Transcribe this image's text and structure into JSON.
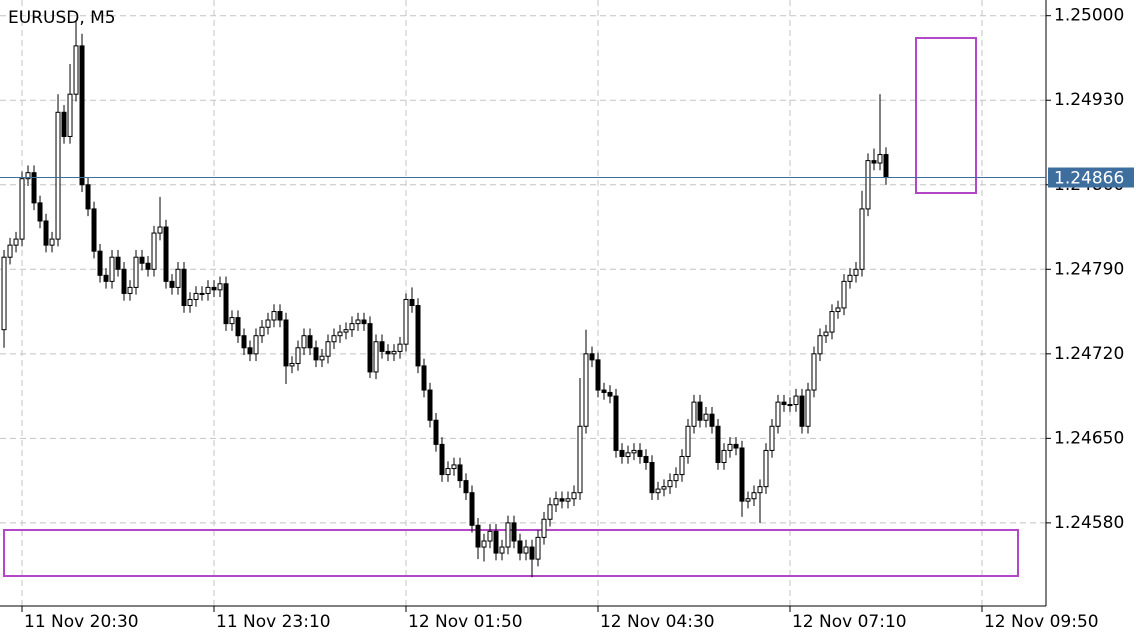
{
  "chart_data": {
    "type": "candlestick",
    "title": "EURUSD, M5",
    "open": [
      1.2474,
      1.248,
      1.2481,
      1.24815,
      1.24865,
      1.2487,
      1.24845,
      1.2483,
      1.2481,
      1.24815,
      1.2492,
      1.249,
      1.24935,
      1.24975,
      1.2486,
      1.2484,
      1.24805,
      1.24785,
      1.2478,
      1.248,
      1.2479,
      1.2477,
      1.24775,
      1.248,
      1.24795,
      1.2479,
      1.2482,
      1.24825,
      1.2478,
      1.24775,
      1.2479,
      1.2476,
      1.24765,
      1.2477,
      1.2477,
      1.24775,
      1.24773,
      1.24778,
      1.24745,
      1.2475,
      1.24735,
      1.24725,
      1.2472,
      1.24735,
      1.24742,
      1.24748,
      1.24755,
      1.24748,
      1.2471,
      1.24712,
      1.24725,
      1.24735,
      1.24725,
      1.24715,
      1.24718,
      1.2473,
      1.24735,
      1.24738,
      1.2474,
      1.24745,
      1.24748,
      1.24745,
      1.24705,
      1.2473,
      1.24722,
      1.2472,
      1.24722,
      1.24728,
      1.24765,
      1.2476,
      1.2471,
      1.2469,
      1.24665,
      1.24645,
      1.2462,
      1.24625,
      1.24628,
      1.24615,
      1.24605,
      1.24578,
      1.2456,
      1.24565,
      1.24573,
      1.24555,
      1.2456,
      1.2458,
      1.24565,
      1.24555,
      1.2456,
      1.2455,
      1.24568,
      1.24583,
      1.24595,
      1.246,
      1.24598,
      1.246,
      1.24605,
      1.2466,
      1.2472,
      1.24715,
      1.2469,
      1.24688,
      1.24685,
      1.2464,
      1.24635,
      1.24638,
      1.2464,
      1.24635,
      1.2463,
      1.24605,
      1.24608,
      1.2461,
      1.24615,
      1.2462,
      1.24635,
      1.2466,
      1.2468,
      1.24665,
      1.2467,
      1.2466,
      1.2463,
      1.2464,
      1.24645,
      1.24642,
      1.24598,
      1.246,
      1.24605,
      1.2461,
      1.2464,
      1.2466,
      1.2468,
      1.24678,
      1.24678,
      1.24685,
      1.2466,
      1.2469,
      1.2472,
      1.24735,
      1.24738,
      1.24755,
      1.24758,
      1.2478,
      1.24785,
      1.2479,
      1.2484,
      1.2488,
      1.24878,
      1.24885
    ],
    "high": [
      1.24806,
      1.24816,
      1.24821,
      1.24871,
      1.24876,
      1.24876,
      1.24851,
      1.24836,
      1.24821,
      1.24935,
      1.24926,
      1.2496,
      1.24995,
      1.24985,
      1.24866,
      1.24846,
      1.24811,
      1.24791,
      1.24806,
      1.24806,
      1.24796,
      1.24781,
      1.24806,
      1.24806,
      1.24801,
      1.24826,
      1.2485,
      1.24831,
      1.24786,
      1.24796,
      1.24796,
      1.24771,
      1.24776,
      1.24776,
      1.24781,
      1.24781,
      1.24784,
      1.24784,
      1.24756,
      1.24756,
      1.24741,
      1.24731,
      1.24741,
      1.24748,
      1.24754,
      1.24761,
      1.24761,
      1.24754,
      1.24718,
      1.24731,
      1.24741,
      1.24741,
      1.24731,
      1.24724,
      1.24736,
      1.24741,
      1.24744,
      1.24746,
      1.24751,
      1.24754,
      1.24754,
      1.24751,
      1.24736,
      1.24736,
      1.24728,
      1.24728,
      1.24734,
      1.2477,
      1.24775,
      1.24766,
      1.24716,
      1.24696,
      1.24671,
      1.24651,
      1.24631,
      1.24634,
      1.24634,
      1.24621,
      1.24611,
      1.24584,
      1.24571,
      1.24579,
      1.24579,
      1.24566,
      1.24586,
      1.24586,
      1.24571,
      1.24566,
      1.24566,
      1.24574,
      1.24589,
      1.24601,
      1.24606,
      1.24606,
      1.24606,
      1.24611,
      1.247,
      1.2474,
      1.24726,
      1.24721,
      1.24696,
      1.24694,
      1.24691,
      1.24646,
      1.24644,
      1.24646,
      1.24646,
      1.24641,
      1.24636,
      1.24614,
      1.24616,
      1.24621,
      1.24626,
      1.24641,
      1.24666,
      1.24686,
      1.24686,
      1.24676,
      1.24676,
      1.24666,
      1.24646,
      1.24651,
      1.24651,
      1.24648,
      1.24606,
      1.24611,
      1.24616,
      1.24646,
      1.24666,
      1.24686,
      1.24686,
      1.24684,
      1.24691,
      1.24691,
      1.24696,
      1.24726,
      1.24741,
      1.24744,
      1.24761,
      1.24764,
      1.24786,
      1.24791,
      1.24796,
      1.24855,
      1.24886,
      1.2489,
      1.24935,
      1.24891
    ],
    "low": [
      1.24725,
      1.24794,
      1.24804,
      1.24809,
      1.24859,
      1.24839,
      1.24824,
      1.24804,
      1.24804,
      1.24809,
      1.24894,
      1.24894,
      1.24929,
      1.24854,
      1.24834,
      1.24799,
      1.24779,
      1.24774,
      1.24774,
      1.24784,
      1.24764,
      1.24764,
      1.24769,
      1.24789,
      1.24784,
      1.24784,
      1.24814,
      1.24774,
      1.24769,
      1.24769,
      1.24754,
      1.24754,
      1.24759,
      1.24764,
      1.24764,
      1.24767,
      1.24767,
      1.24739,
      1.24739,
      1.24729,
      1.24719,
      1.24714,
      1.24714,
      1.24729,
      1.24736,
      1.24742,
      1.24742,
      1.24695,
      1.24704,
      1.24706,
      1.24719,
      1.24719,
      1.24709,
      1.24709,
      1.24712,
      1.24724,
      1.24729,
      1.24732,
      1.24734,
      1.24739,
      1.24739,
      1.247,
      1.24699,
      1.24716,
      1.24714,
      1.24714,
      1.24716,
      1.24722,
      1.24754,
      1.24704,
      1.24684,
      1.24659,
      1.24639,
      1.24614,
      1.24614,
      1.24619,
      1.24609,
      1.24599,
      1.24572,
      1.2455,
      1.24548,
      1.24559,
      1.24549,
      1.24549,
      1.24554,
      1.24559,
      1.24549,
      1.24549,
      1.24535,
      1.24544,
      1.24562,
      1.24577,
      1.24589,
      1.24592,
      1.24592,
      1.24594,
      1.24599,
      1.24654,
      1.24709,
      1.24684,
      1.24682,
      1.24679,
      1.24634,
      1.24629,
      1.24629,
      1.24632,
      1.24629,
      1.24624,
      1.24599,
      1.24599,
      1.24602,
      1.24604,
      1.24609,
      1.24614,
      1.24629,
      1.24654,
      1.24659,
      1.24659,
      1.24654,
      1.24624,
      1.24624,
      1.24634,
      1.24636,
      1.24585,
      1.24592,
      1.24594,
      1.2458,
      1.24604,
      1.24634,
      1.24654,
      1.24672,
      1.24672,
      1.24672,
      1.24654,
      1.24654,
      1.24684,
      1.24714,
      1.24729,
      1.24732,
      1.24749,
      1.24752,
      1.24774,
      1.24779,
      1.24784,
      1.24834,
      1.24872,
      1.24872,
      1.2486
    ],
    "close": [
      1.248,
      1.2481,
      1.24815,
      1.24865,
      1.2487,
      1.24845,
      1.2483,
      1.2481,
      1.24815,
      1.2492,
      1.249,
      1.24935,
      1.24975,
      1.2486,
      1.2484,
      1.24805,
      1.24785,
      1.2478,
      1.248,
      1.2479,
      1.2477,
      1.24775,
      1.248,
      1.24795,
      1.2479,
      1.2482,
      1.24825,
      1.2478,
      1.24775,
      1.2479,
      1.2476,
      1.24765,
      1.2477,
      1.2477,
      1.24775,
      1.24773,
      1.24778,
      1.24745,
      1.2475,
      1.24735,
      1.24725,
      1.2472,
      1.24735,
      1.24742,
      1.24748,
      1.24755,
      1.24748,
      1.2471,
      1.24712,
      1.24725,
      1.24735,
      1.24725,
      1.24715,
      1.24718,
      1.2473,
      1.24735,
      1.24738,
      1.2474,
      1.24745,
      1.24748,
      1.24745,
      1.24705,
      1.2473,
      1.24722,
      1.2472,
      1.24722,
      1.24728,
      1.24765,
      1.2476,
      1.2471,
      1.2469,
      1.24665,
      1.24645,
      1.2462,
      1.24625,
      1.24628,
      1.24615,
      1.24605,
      1.24578,
      1.2456,
      1.24565,
      1.24573,
      1.24555,
      1.2456,
      1.2458,
      1.24565,
      1.24555,
      1.2456,
      1.2455,
      1.24568,
      1.24583,
      1.24595,
      1.246,
      1.24598,
      1.246,
      1.24605,
      1.2466,
      1.2472,
      1.24715,
      1.2469,
      1.24688,
      1.24685,
      1.2464,
      1.24635,
      1.24638,
      1.2464,
      1.24635,
      1.2463,
      1.24605,
      1.24608,
      1.2461,
      1.24615,
      1.2462,
      1.24635,
      1.2466,
      1.2468,
      1.24665,
      1.2467,
      1.2466,
      1.2463,
      1.2464,
      1.24645,
      1.24642,
      1.24598,
      1.246,
      1.24605,
      1.2461,
      1.2464,
      1.2466,
      1.2468,
      1.24678,
      1.24678,
      1.24685,
      1.2466,
      1.2469,
      1.2472,
      1.24735,
      1.24738,
      1.24755,
      1.24758,
      1.2478,
      1.24785,
      1.2479,
      1.2484,
      1.2488,
      1.24878,
      1.24885,
      1.24866
    ],
    "ylim": [
      1.24512,
      1.25013
    ],
    "yticks": [
      {
        "value": 1.25,
        "label": "1.25000"
      },
      {
        "value": 1.2493,
        "label": "1.24930"
      },
      {
        "value": 1.2486,
        "label": "1.24860"
      },
      {
        "value": 1.2479,
        "label": "1.24790"
      },
      {
        "value": 1.2472,
        "label": "1.24720"
      },
      {
        "value": 1.2465,
        "label": "1.24650"
      },
      {
        "value": 1.2458,
        "label": "1.24580"
      }
    ],
    "xlim": [
      -0.67,
      173.67
    ],
    "xticks": [
      {
        "value": 3,
        "label": "11 Nov 20:30"
      },
      {
        "value": 35,
        "label": "11 Nov 23:10"
      },
      {
        "value": 67,
        "label": "12 Nov 01:50"
      },
      {
        "value": 99,
        "label": "12 Nov 04:30"
      },
      {
        "value": 131,
        "label": "12 Nov 07:10"
      },
      {
        "value": 163,
        "label": "12 Nov 09:50"
      }
    ],
    "grid": true,
    "current_price": 1.24866,
    "up_color": "#ffffff",
    "down_color": "#000000",
    "outline_color": "#000000",
    "price_line_color": "#3d6e9e"
  }
}
